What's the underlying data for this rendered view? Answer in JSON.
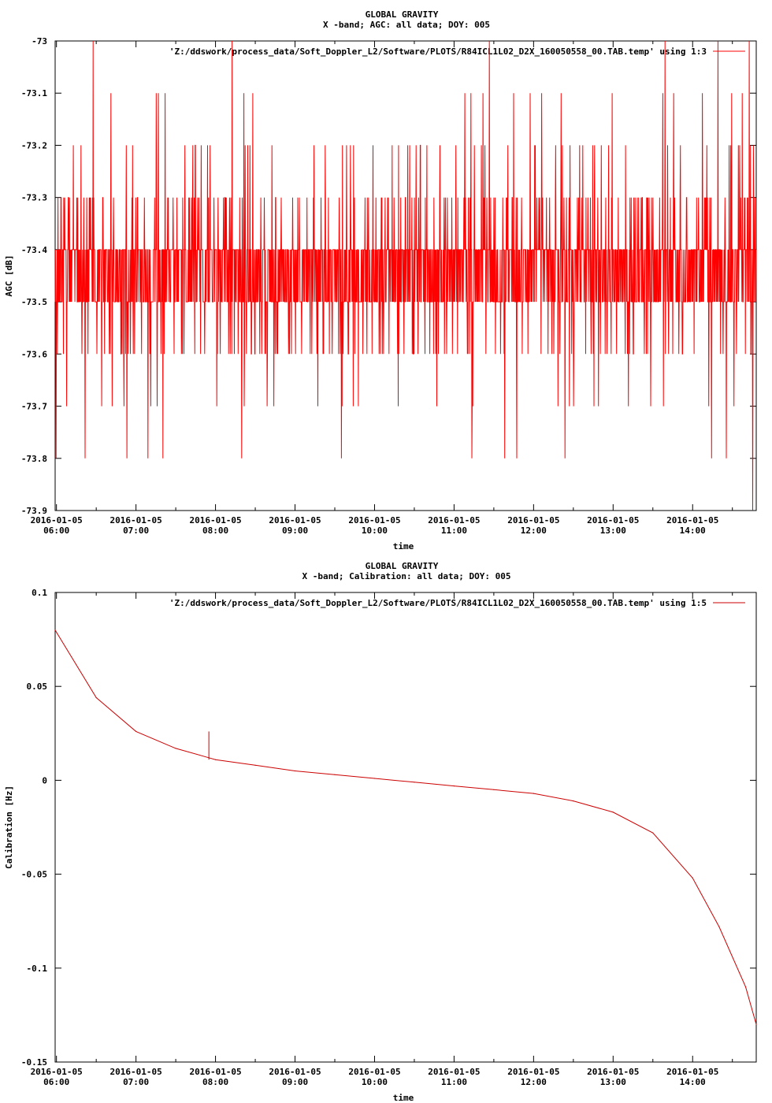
{
  "charts": [
    {
      "title": "GLOBAL GRAVITY",
      "subtitle": "X -band; AGC: all data; DOY: 005",
      "ylabel": "AGC [dB]",
      "xlabel": "time",
      "legend": "'Z:/ddswork/process_data/Soft_Doppler_L2/Software/PLOTS/R84ICL1L02_D2X_160050558_00.TAB.temp' using 1:3",
      "y_tick_labels": [
        "-73",
        "-73.1",
        "-73.2",
        "-73.3",
        "-73.4",
        "-73.5",
        "-73.6",
        "-73.7",
        "-73.8",
        "-73.9"
      ],
      "x_tick_dates": [
        "2016-01-05",
        "2016-01-05",
        "2016-01-05",
        "2016-01-05",
        "2016-01-05",
        "2016-01-05",
        "2016-01-05",
        "2016-01-05",
        "2016-01-05"
      ],
      "x_tick_times": [
        "06:00",
        "07:00",
        "08:00",
        "09:00",
        "10:00",
        "11:00",
        "12:00",
        "13:00",
        "14:00"
      ]
    },
    {
      "title": "GLOBAL GRAVITY",
      "subtitle": "X -band; Calibration: all data; DOY: 005",
      "ylabel": "Calibration [Hz]",
      "xlabel": "time",
      "legend": "'Z:/ddswork/process_data/Soft_Doppler_L2/Software/PLOTS/R84ICL1L02_D2X_160050558_00.TAB.temp' using 1:5",
      "y_tick_labels": [
        "0.1",
        "0.05",
        "0",
        "-0.05",
        "-0.1",
        "-0.15"
      ],
      "x_tick_dates": [
        "2016-01-05",
        "2016-01-05",
        "2016-01-05",
        "2016-01-05",
        "2016-01-05",
        "2016-01-05",
        "2016-01-05",
        "2016-01-05",
        "2016-01-05"
      ],
      "x_tick_times": [
        "06:00",
        "07:00",
        "08:00",
        "09:00",
        "10:00",
        "11:00",
        "12:00",
        "13:00",
        "14:00"
      ]
    }
  ],
  "chart_data": [
    {
      "type": "line",
      "title": "GLOBAL GRAVITY",
      "subtitle": "X -band; AGC: all data; DOY: 005",
      "xlabel": "time",
      "ylabel": "AGC [dB]",
      "xlim": [
        "2016-01-05 05:59",
        "2016-01-05 14:48"
      ],
      "ylim": [
        -73.9,
        -73.0
      ],
      "grid": false,
      "legend_position": "top-right",
      "color": "#ff0000",
      "series": [
        {
          "name": "'Z:/ddswork/process_data/Soft_Doppler_L2/Software/PLOTS/R84ICL1L02_D2X_160050558_00.TAB.temp' using 1:3",
          "description_values": {
            "typical_min": -73.6,
            "typical_max": -73.3,
            "center": -73.45,
            "min_observed": -73.9,
            "max_observed": -73.0
          }
        }
      ]
    },
    {
      "type": "line",
      "title": "GLOBAL GRAVITY",
      "subtitle": "X -band; Calibration: all data; DOY: 005",
      "xlabel": "time",
      "ylabel": "Calibration [Hz]",
      "xlim": [
        "2016-01-05 05:59",
        "2016-01-05 14:48"
      ],
      "ylim": [
        -0.15,
        0.1
      ],
      "grid": false,
      "legend_position": "top-right",
      "color": "#cc0000",
      "series": [
        {
          "name": "'Z:/ddswork/process_data/Soft_Doppler_L2/Software/PLOTS/R84ICL1L02_D2X_160050558_00.TAB.temp' using 1:5",
          "x": [
            "05:59",
            "06:30",
            "07:00",
            "07:30",
            "07:55",
            "08:00",
            "08:30",
            "09:00",
            "09:30",
            "10:00",
            "10:30",
            "11:00",
            "11:30",
            "12:00",
            "12:30",
            "13:00",
            "13:30",
            "14:00",
            "14:20",
            "14:40",
            "14:48"
          ],
          "y": [
            0.08,
            0.044,
            0.026,
            0.017,
            0.012,
            0.011,
            0.008,
            0.005,
            0.003,
            0.001,
            -0.001,
            -0.003,
            -0.005,
            -0.007,
            -0.011,
            -0.017,
            -0.028,
            -0.052,
            -0.078,
            -0.11,
            -0.13
          ],
          "spike": {
            "x": "07:55",
            "y": 0.026
          }
        }
      ]
    }
  ]
}
